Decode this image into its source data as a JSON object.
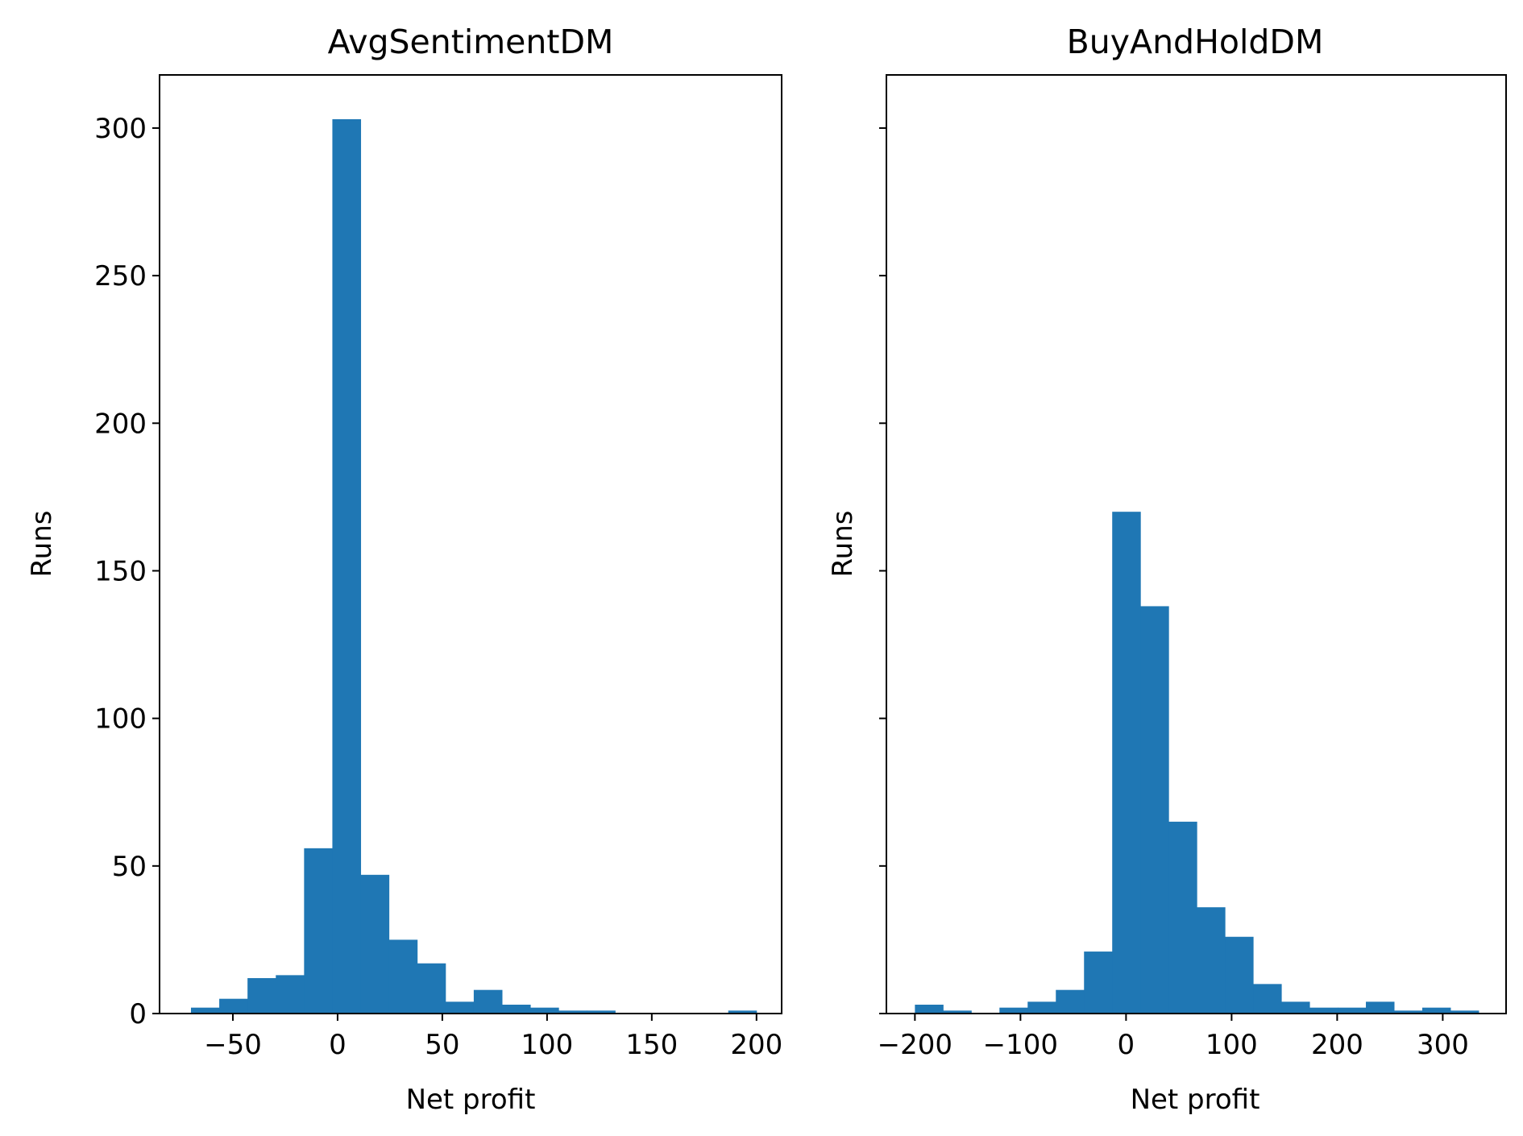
{
  "chart_data": [
    {
      "type": "bar",
      "subtype": "histogram",
      "title": "AvgSentimentDM",
      "xlabel": "Net profit",
      "ylabel": "Runs",
      "xlim": [
        -85,
        212
      ],
      "ylim": [
        0,
        318
      ],
      "xticks": [
        -50,
        0,
        50,
        100,
        150,
        200
      ],
      "xtick_labels": [
        "−50",
        "0",
        "50",
        "100",
        "150",
        "200"
      ],
      "yticks": [
        0,
        50,
        100,
        150,
        200,
        250,
        300
      ],
      "ytick_labels": [
        "0",
        "50",
        "100",
        "150",
        "200",
        "250",
        "300"
      ],
      "bin_edges": [
        -70,
        -56.5,
        -43,
        -29.5,
        -16,
        -2.5,
        11,
        24.5,
        38,
        51.5,
        65,
        78.5,
        92,
        105.5,
        119,
        132.5,
        146,
        159.5,
        173,
        186.5,
        200
      ],
      "values": [
        2,
        5,
        12,
        13,
        56,
        303,
        47,
        25,
        17,
        4,
        8,
        3,
        2,
        1,
        1,
        0,
        0,
        0,
        0,
        1
      ],
      "color": "#1f77b4",
      "grid": false,
      "legend": "none"
    },
    {
      "type": "bar",
      "subtype": "histogram",
      "title": "BuyAndHoldDM",
      "xlabel": "Net profit",
      "ylabel": "Runs",
      "xlim": [
        -227,
        360
      ],
      "ylim": [
        0,
        318
      ],
      "xticks": [
        -200,
        -100,
        0,
        100,
        200,
        300
      ],
      "xtick_labels": [
        "−200",
        "−100",
        "0",
        "100",
        "200",
        "300"
      ],
      "yticks": [
        0,
        50,
        100,
        150,
        200,
        250,
        300
      ],
      "ytick_labels": [
        "",
        "",
        "",
        "",
        "",
        "",
        ""
      ],
      "bin_edges": [
        -200,
        -173.3,
        -146.6,
        -119.9,
        -93.2,
        -66.5,
        -39.8,
        -13.1,
        13.6,
        40.3,
        67,
        93.7,
        120.4,
        147.1,
        173.8,
        200.5,
        227.2,
        253.9,
        280.6,
        307.3,
        334
      ],
      "values": [
        3,
        1,
        0,
        2,
        4,
        8,
        21,
        170,
        138,
        65,
        36,
        26,
        10,
        4,
        2,
        2,
        4,
        1,
        2,
        1
      ],
      "color": "#1f77b4",
      "grid": false,
      "legend": "none",
      "sharey": true
    }
  ]
}
